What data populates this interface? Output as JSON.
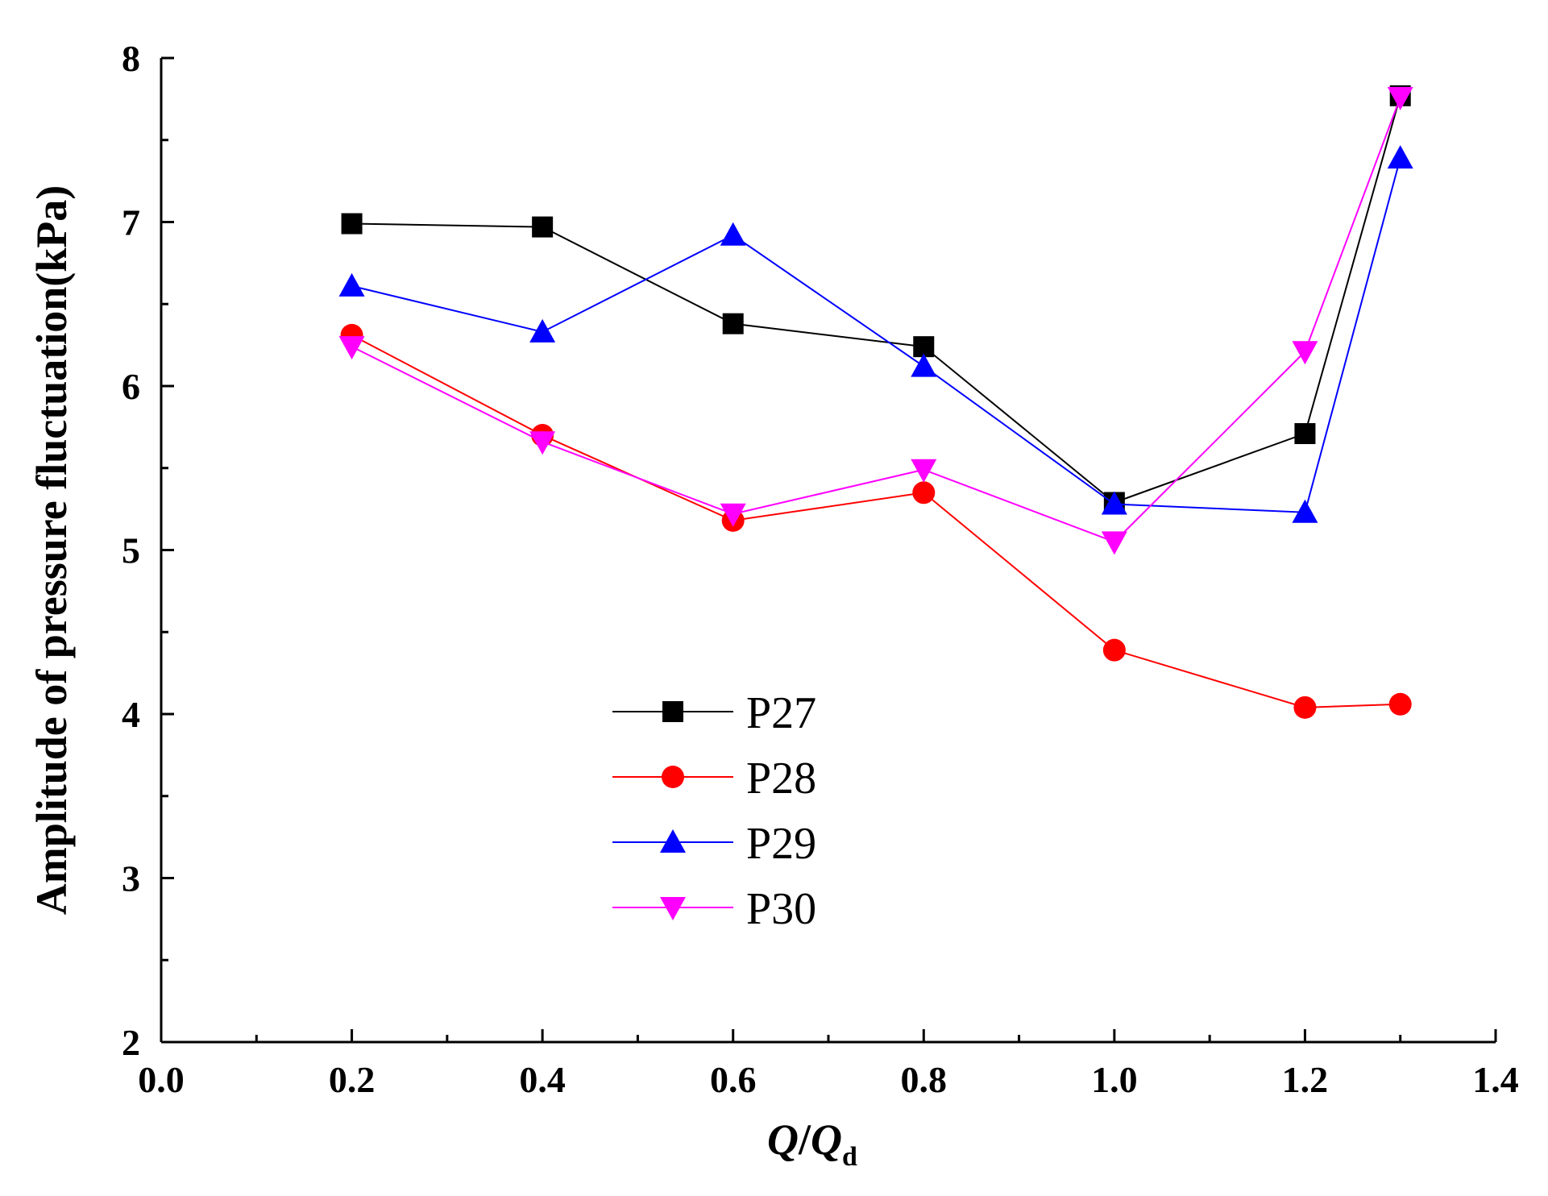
{
  "chart_data": {
    "type": "line",
    "title": "",
    "xlabel": {
      "main": "Q/Q",
      "sub": "d"
    },
    "ylabel": "Amplitude of pressure fluctuation(kPa)",
    "xlim": [
      0.0,
      1.4
    ],
    "ylim": [
      2,
      8
    ],
    "xticks": [
      0.0,
      0.2,
      0.4,
      0.6,
      0.8,
      1.0,
      1.2,
      1.4
    ],
    "xtick_labels": [
      "0.0",
      "0.2",
      "0.4",
      "0.6",
      "0.8",
      "1.0",
      "1.2",
      "1.4"
    ],
    "yticks": [
      2,
      3,
      4,
      5,
      6,
      7,
      8
    ],
    "ytick_labels": [
      "2",
      "3",
      "4",
      "5",
      "6",
      "7",
      "8"
    ],
    "grid": false,
    "legend_position": "center-left",
    "x": [
      0.2,
      0.4,
      0.6,
      0.8,
      1.0,
      1.2,
      1.3
    ],
    "series": [
      {
        "name": "P27",
        "color": "#000000",
        "marker": "square",
        "values": [
          6.99,
          6.97,
          6.38,
          6.24,
          5.29,
          5.71,
          7.77
        ]
      },
      {
        "name": "P28",
        "color": "#ff0000",
        "marker": "circle",
        "values": [
          6.31,
          5.7,
          5.18,
          5.35,
          4.39,
          4.04,
          4.06
        ]
      },
      {
        "name": "P29",
        "color": "#0000ff",
        "marker": "triangle-up",
        "values": [
          6.61,
          6.33,
          6.92,
          6.12,
          5.28,
          5.23,
          7.39
        ]
      },
      {
        "name": "P30",
        "color": "#ff00ff",
        "marker": "triangle-down",
        "values": [
          6.24,
          5.66,
          5.22,
          5.49,
          5.05,
          6.21,
          7.76
        ]
      }
    ]
  }
}
